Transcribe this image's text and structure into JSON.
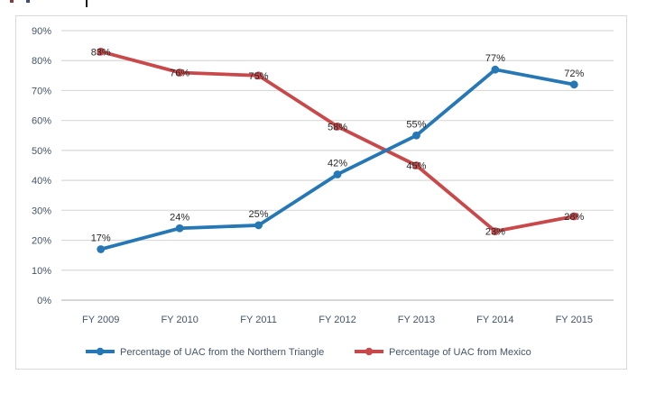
{
  "chart_data": {
    "type": "line",
    "title": "",
    "xlabel": "",
    "ylabel": "",
    "categories": [
      "FY 2009",
      "FY 2010",
      "FY 2011",
      "FY 2012",
      "FY 2013",
      "FY 2014",
      "FY 2015"
    ],
    "series": [
      {
        "name": "Percentage of UAC from the Northern Triangle",
        "color": "#2577B5",
        "values": [
          17,
          24,
          25,
          42,
          55,
          77,
          72
        ],
        "labels": [
          "17%",
          "24%",
          "25%",
          "42%",
          "55%",
          "77%",
          "72%"
        ],
        "label_position": "above",
        "marker": "circle"
      },
      {
        "name": "Percentage of UAC from Mexico",
        "color": "#C9494B",
        "values": [
          83,
          76,
          75,
          58,
          45,
          23,
          28
        ],
        "labels": [
          "83%",
          "76%",
          "75%",
          "58%",
          "45%",
          "23%",
          "28%"
        ],
        "label_position": "center",
        "marker": "circle"
      }
    ],
    "ylim": [
      0,
      90
    ],
    "ytick_step": 10,
    "ytick_labels": [
      "0%",
      "10%",
      "20%",
      "30%",
      "40%",
      "50%",
      "60%",
      "70%",
      "80%",
      "90%"
    ],
    "grid": true,
    "data_labels": true,
    "legend_position": "bottom"
  },
  "colors": {
    "background": "#FFFFFF",
    "frame_border": "#D9D9D9",
    "gridline": "#D9D9D9",
    "axis_line": "#BFBFBF",
    "axis_label": "#44546A",
    "data_label": "#262626",
    "legend_label": "#44546A"
  }
}
